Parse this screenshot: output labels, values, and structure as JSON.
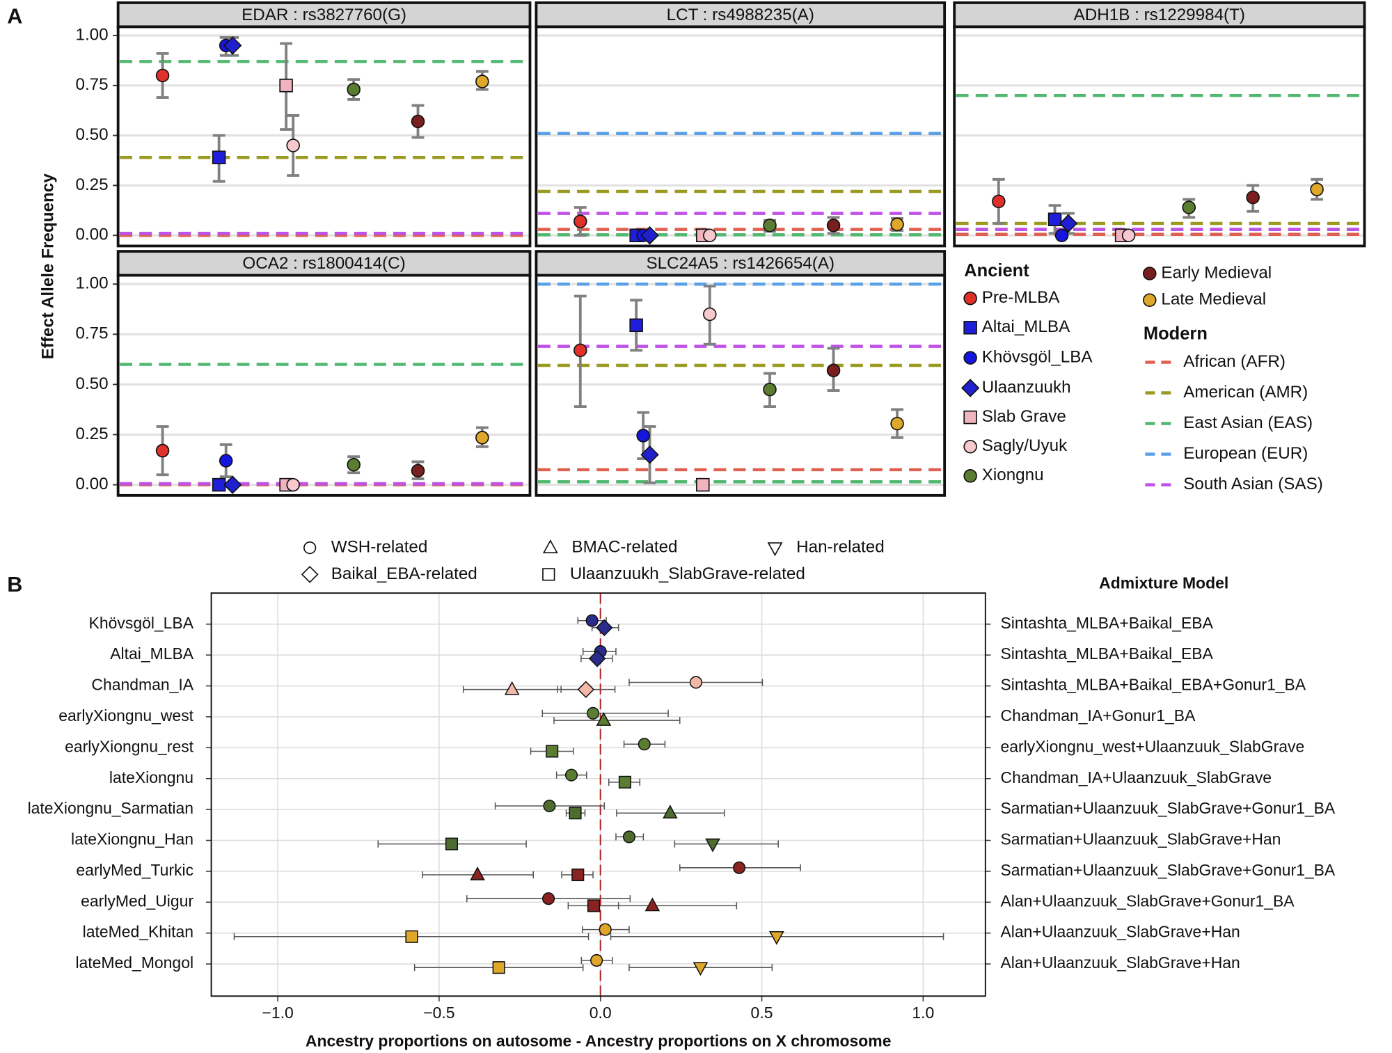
{
  "chart_data": [
    {
      "type": "facet_scatter",
      "panel": "A",
      "ylabel": "Effect Allele Frequency",
      "ylim": [
        -0.053,
        1.044
      ],
      "yticks": [
        {
          "value": 0,
          "label": "0.00"
        },
        {
          "value": 0.25,
          "label": "0.25"
        },
        {
          "value": 0.5,
          "label": "0.50"
        },
        {
          "value": 0.75,
          "label": "0.75"
        },
        {
          "value": 1,
          "label": "1.00"
        }
      ],
      "grid": true,
      "facets": [
        "EDAR : rs3827760(G)",
        "LCT : rs4988235(A)",
        "ADH1B : rs1229984(T)",
        "OCA2 : rs1800414(C)",
        "SLC24A5 : rs1426654(A)"
      ],
      "legend_title": "Ancient",
      "series": [
        {
          "name": "Pre-MLBA",
          "color": "#e0302a",
          "shape": "circle",
          "values": [
            0.8,
            0.07,
            0.17,
            0.17,
            0.67
          ],
          "ci_low": [
            0.69,
            0.0,
            0.06,
            0.05,
            0.39
          ],
          "ci_high": [
            0.91,
            0.14,
            0.28,
            0.29,
            0.94
          ]
        },
        {
          "name": "Altai_MLBA",
          "color": "#1f1fdb",
          "shape": "square",
          "values": [
            0.39,
            0.0,
            0.08,
            0.0,
            0.795
          ],
          "ci_low": [
            0.27,
            0.0,
            0.01,
            0.0,
            0.67
          ],
          "ci_high": [
            0.5,
            0.0,
            0.15,
            0.0,
            0.92
          ]
        },
        {
          "name": "Khövsgöl_LBA",
          "color": "#1515e0",
          "shape": "circle",
          "values": [
            0.95,
            0.0,
            0.0,
            0.12,
            0.245
          ],
          "ci_low": [
            0.9,
            0.0,
            0.0,
            0.04,
            0.13
          ],
          "ci_high": [
            0.99,
            0.0,
            0.0,
            0.2,
            0.36
          ]
        },
        {
          "name": "Ulaanzuukh",
          "color": "#2020d0",
          "shape": "diamond",
          "values": [
            0.95,
            0.0,
            0.06,
            0.0,
            0.15
          ],
          "ci_low": [
            0.9,
            0.0,
            0.01,
            0.0,
            0.01
          ],
          "ci_high": [
            0.99,
            0.0,
            0.11,
            0.0,
            0.29
          ]
        },
        {
          "name": "Slab Grave",
          "color": "#f0b4bf",
          "shape": "square",
          "values": [
            0.75,
            0.0,
            0.0,
            0.0,
            0.0
          ],
          "ci_low": [
            0.53,
            0.0,
            0.0,
            0.0,
            0.0
          ],
          "ci_high": [
            0.96,
            0.0,
            0.0,
            0.0,
            0.0
          ]
        },
        {
          "name": "Sagly/Uyuk",
          "color": "#f8c8cf",
          "shape": "circle",
          "values": [
            0.45,
            0.0,
            0.0,
            0.0,
            0.85
          ],
          "ci_low": [
            0.3,
            0.0,
            0.0,
            0.0,
            0.7
          ],
          "ci_high": [
            0.6,
            0.0,
            0.0,
            0.0,
            0.99
          ]
        },
        {
          "name": "Xiongnu",
          "color": "#5a7d32",
          "shape": "circle",
          "values": [
            0.73,
            0.05,
            0.14,
            0.1,
            0.475
          ],
          "ci_low": [
            0.68,
            0.02,
            0.09,
            0.06,
            0.39
          ],
          "ci_high": [
            0.78,
            0.075,
            0.18,
            0.14,
            0.555
          ]
        },
        {
          "name": "Early Medieval",
          "color": "#7a1f1f",
          "shape": "circle",
          "values": [
            0.57,
            0.05,
            0.19,
            0.07,
            0.57
          ],
          "ci_low": [
            0.49,
            0.01,
            0.12,
            0.03,
            0.47
          ],
          "ci_high": [
            0.65,
            0.09,
            0.25,
            0.115,
            0.68
          ]
        },
        {
          "name": "Late Medieval",
          "color": "#e0a82a",
          "shape": "circle",
          "values": [
            0.77,
            0.055,
            0.23,
            0.235,
            0.305
          ],
          "ci_low": [
            0.73,
            0.025,
            0.18,
            0.19,
            0.235
          ],
          "ci_high": [
            0.82,
            0.085,
            0.28,
            0.285,
            0.375
          ]
        }
      ],
      "reference_title": "Modern",
      "reference_lines": [
        {
          "name": "African (AFR)",
          "color": "#e06050",
          "values": [
            0.0,
            0.03,
            0.005,
            0.0,
            0.075
          ]
        },
        {
          "name": "American (AMR)",
          "color": "#9a9a20",
          "values": [
            0.39,
            0.22,
            0.06,
            0.005,
            0.595
          ]
        },
        {
          "name": "East Asian (EAS)",
          "color": "#50b870",
          "values": [
            0.87,
            0.003,
            0.7,
            0.6,
            0.015
          ]
        },
        {
          "name": "European (EUR)",
          "color": "#5aa0e8",
          "values": [
            0.01,
            0.51,
            0.03,
            0.005,
            1.0
          ]
        },
        {
          "name": "South Asian (SAS)",
          "color": "#c050e8",
          "values": [
            0.01,
            0.11,
            0.03,
            0.005,
            0.69
          ]
        }
      ]
    },
    {
      "type": "dot",
      "panel": "B",
      "xlabel": "Ancestry proportions on autosome - Ancestry proportions on X chromosome",
      "model_title": "Admixture Model",
      "categories": [
        "Khövsgöl_LBA",
        "Altai_MLBA",
        "Chandman_IA",
        "earlyXiongnu_west",
        "earlyXiongnu_rest",
        "lateXiongnu",
        "lateXiongnu_Sarmatian",
        "lateXiongnu_Han",
        "earlyMed_Turkic",
        "earlyMed_Uigur",
        "lateMed_Khitan",
        "lateMed_Mongol"
      ],
      "models": [
        "Sintashta_MLBA+Baikal_EBA",
        "Sintashta_MLBA+Baikal_EBA",
        "Sintashta_MLBA+Baikal_EBA+Gonur1_BA",
        "Chandman_IA+Gonur1_BA",
        "earlyXiongnu_west+Ulaanzuuk_SlabGrave",
        "Chandman_IA+Ulaanzuuk_SlabGrave",
        "Sarmatian+Ulaanzuuk_SlabGrave+Gonur1_BA",
        "Sarmatian+Ulaanzuuk_SlabGrave+Han",
        "Sarmatian+Ulaanzuuk_SlabGrave+Gonur1_BA",
        "Alan+Ulaanzuuk_SlabGrave+Gonur1_BA",
        "Alan+Ulaanzuuk_SlabGrave+Han",
        "Alan+Ulaanzuuk_SlabGrave+Han"
      ],
      "row_colors": [
        "#2b2b8c",
        "#2b2b8c",
        "#f4b8a8",
        "#5a7d32",
        "#5a7d32",
        "#5a7d32",
        "#4e6b30",
        "#4e6b30",
        "#8b2222",
        "#8b2222",
        "#e0a82a",
        "#e0a82a"
      ],
      "xlim": [
        -1.206,
        1.193
      ],
      "xticks": [
        {
          "value": -1,
          "label": "−1.0"
        },
        {
          "value": -0.5,
          "label": "−0.5"
        },
        {
          "value": 0,
          "label": "0.0"
        },
        {
          "value": 0.5,
          "label": "0.5"
        },
        {
          "value": 1,
          "label": "1.0"
        }
      ],
      "grid": true,
      "series": [
        {
          "name": "WSH-related",
          "shape": "circle",
          "values": [
            -0.026,
            0.0,
            0.296,
            -0.023,
            0.136,
            -0.09,
            -0.158,
            0.089,
            0.43,
            -0.161,
            0.015,
            -0.012
          ],
          "err_low": [
            -0.07,
            -0.054,
            0.089,
            -0.18,
            0.073,
            -0.136,
            -0.326,
            0.048,
            0.246,
            -0.414,
            -0.056,
            -0.059
          ],
          "err_high": [
            0.018,
            0.048,
            0.502,
            0.21,
            0.2,
            -0.043,
            0.012,
            0.133,
            0.62,
            0.092,
            0.089,
            0.037
          ]
        },
        {
          "name": "BMAC-related",
          "shape": "triangle-up",
          "values": [
            null,
            null,
            -0.274,
            0.01,
            null,
            null,
            0.216,
            null,
            -0.381,
            0.161,
            null,
            null
          ],
          "err_low": [
            null,
            null,
            -0.425,
            -0.144,
            null,
            null,
            0.05,
            null,
            -0.552,
            -0.021,
            null,
            null
          ],
          "err_high": [
            null,
            null,
            -0.122,
            0.246,
            null,
            null,
            0.384,
            null,
            -0.208,
            0.422,
            null,
            null
          ]
        },
        {
          "name": "Han-related",
          "shape": "triangle-down",
          "values": [
            null,
            null,
            null,
            null,
            null,
            null,
            null,
            0.348,
            null,
            null,
            0.546,
            0.31
          ],
          "err_low": [
            null,
            null,
            null,
            null,
            null,
            null,
            null,
            0.23,
            null,
            null,
            0.032,
            0.089
          ],
          "err_high": [
            null,
            null,
            null,
            null,
            null,
            null,
            null,
            0.551,
            null,
            null,
            1.063,
            0.532
          ]
        },
        {
          "name": "Baikal_EBA-related",
          "shape": "diamond",
          "values": [
            0.012,
            -0.01,
            -0.045,
            null,
            null,
            null,
            null,
            null,
            null,
            null,
            null,
            null
          ],
          "err_low": [
            -0.026,
            -0.06,
            -0.133,
            null,
            null,
            null,
            null,
            null,
            null,
            null,
            null,
            null
          ],
          "err_high": [
            0.056,
            0.037,
            0.045,
            null,
            null,
            null,
            null,
            null,
            null,
            null,
            null,
            null
          ]
        },
        {
          "name": "Ulaanzuukh_SlabGrave-related",
          "shape": "square",
          "values": [
            null,
            null,
            null,
            null,
            -0.15,
            0.076,
            -0.078,
            -0.461,
            -0.07,
            -0.021,
            -0.585,
            -0.315
          ],
          "err_low": [
            null,
            null,
            null,
            null,
            -0.216,
            0.026,
            -0.106,
            -0.689,
            -0.12,
            -0.1,
            -1.135,
            -0.576
          ],
          "err_high": [
            null,
            null,
            null,
            null,
            -0.084,
            0.122,
            -0.048,
            -0.23,
            -0.023,
            0.056,
            -0.037,
            -0.054
          ]
        }
      ]
    }
  ]
}
